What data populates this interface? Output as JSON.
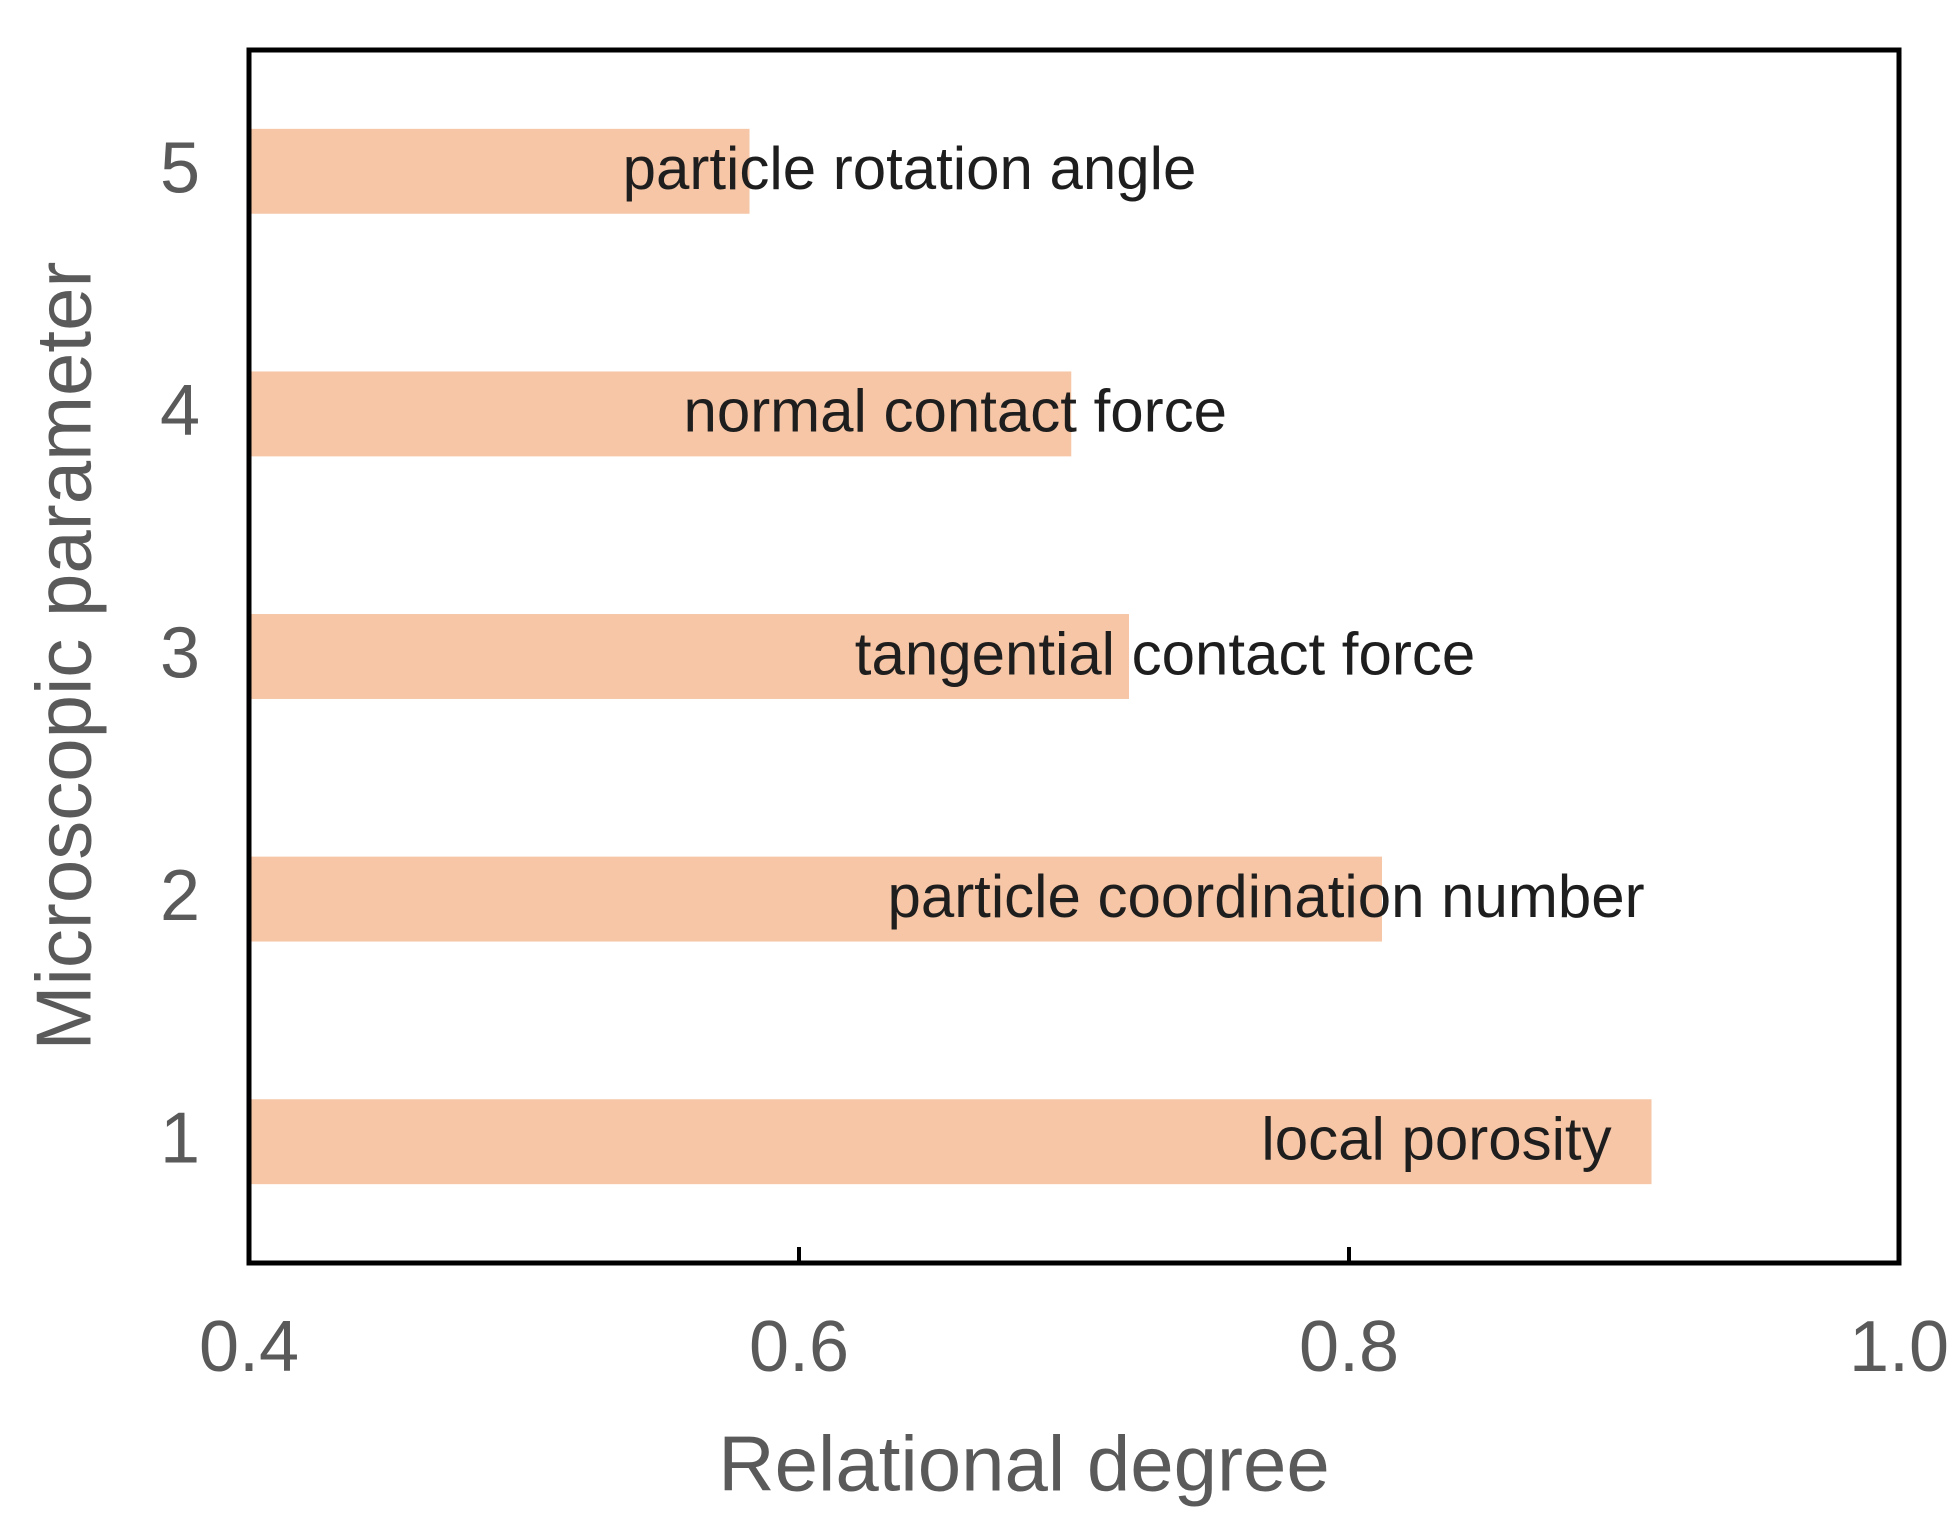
{
  "chart_data": {
    "type": "hbar",
    "x_label": "Relational degree",
    "y_label": "Microscopic parameter",
    "y": [
      1,
      2,
      3,
      4,
      5
    ],
    "values": [
      0.91,
      0.812,
      0.72,
      0.699,
      0.582
    ],
    "labels": [
      "local porosity",
      "particle coordination number",
      "tangential contact force",
      "normal contact force",
      "particle rotation angle"
    ],
    "color": "#f6c6a6",
    "xlim": [
      0.4,
      1.0
    ],
    "xticks": [
      0.4,
      0.6,
      0.8,
      {
        "value": 1.0,
        "label": "1.0"
      }
    ],
    "ylim": [
      0.5,
      5.5
    ],
    "yticks": [
      1,
      2,
      3,
      4,
      5
    ]
  }
}
